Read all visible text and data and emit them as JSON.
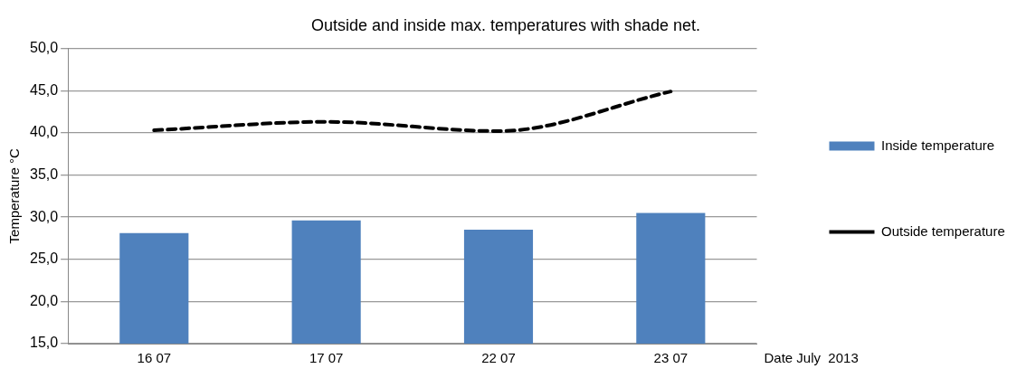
{
  "chart_data": {
    "type": "bar",
    "title": "Outside and inside max. temperatures with shade net.",
    "xlabel": "Date July  2013",
    "ylabel": "Temperature °C",
    "categories": [
      "16 07",
      "17 07",
      "22 07",
      "23 07"
    ],
    "series": [
      {
        "name": "Inside temperature",
        "color": "#4f81bd",
        "values": [
          28.1,
          29.6,
          28.5,
          30.5
        ]
      },
      {
        "name": "Outside temperature",
        "type": "line",
        "color": "#000000",
        "values": [
          40.3,
          41.3,
          40.2,
          44.9
        ],
        "line_style": "dashed",
        "marker": "none"
      }
    ],
    "ylim": [
      15,
      50
    ],
    "yticks": [
      {
        "value": 15,
        "label": "15,0"
      },
      {
        "value": 20,
        "label": "20,0"
      },
      {
        "value": 25,
        "label": "25,0"
      },
      {
        "value": 30,
        "label": "30,0"
      },
      {
        "value": 35,
        "label": "35,0"
      },
      {
        "value": 40,
        "label": "40,0"
      },
      {
        "value": 45,
        "label": "45,0"
      },
      {
        "value": 50,
        "label": "50,0"
      }
    ],
    "grid": "y",
    "legend": "right"
  }
}
